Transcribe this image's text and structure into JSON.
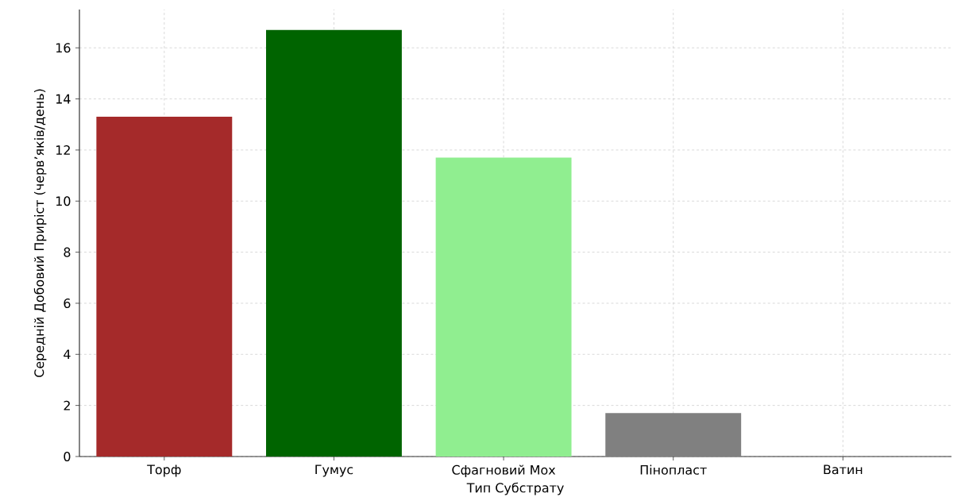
{
  "chart_data": {
    "type": "bar",
    "xlabel": "Тип Субстрату",
    "ylabel": "Середній Добовий Приріст (черв’яків/день)",
    "categories": [
      "Торф",
      "Гумус",
      "Сфагновий Мох",
      "Пінопласт",
      "Ватин"
    ],
    "values": [
      13.3,
      16.7,
      11.7,
      1.7,
      0
    ],
    "colors": [
      "#a52a2a",
      "#006400",
      "#90ee90",
      "#808080",
      "#808080"
    ],
    "ylim": [
      0,
      17.5
    ],
    "yticks": [
      0,
      2,
      4,
      6,
      8,
      10,
      12,
      14,
      16
    ],
    "grid": true
  }
}
